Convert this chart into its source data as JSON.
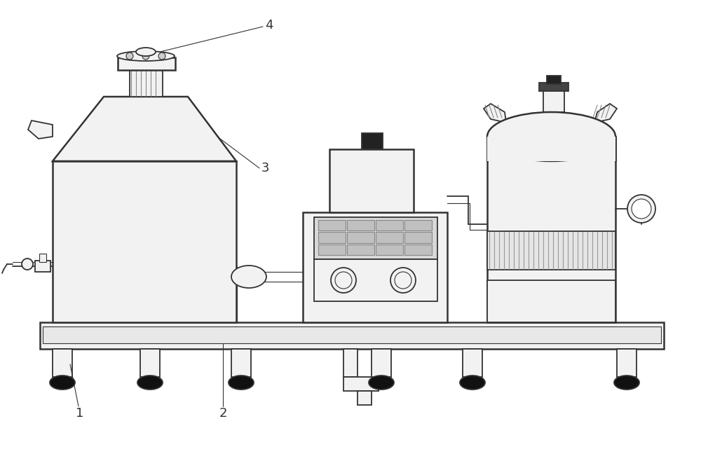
{
  "bg_color": "#ffffff",
  "lc": "#333333",
  "lw": 1.3,
  "lw_thin": 0.8,
  "lw_thick": 1.8,
  "fl": "#f2f2f2",
  "fd": "#111111",
  "fm": "#d0d0d0",
  "fhatch": "#aaaaaa"
}
